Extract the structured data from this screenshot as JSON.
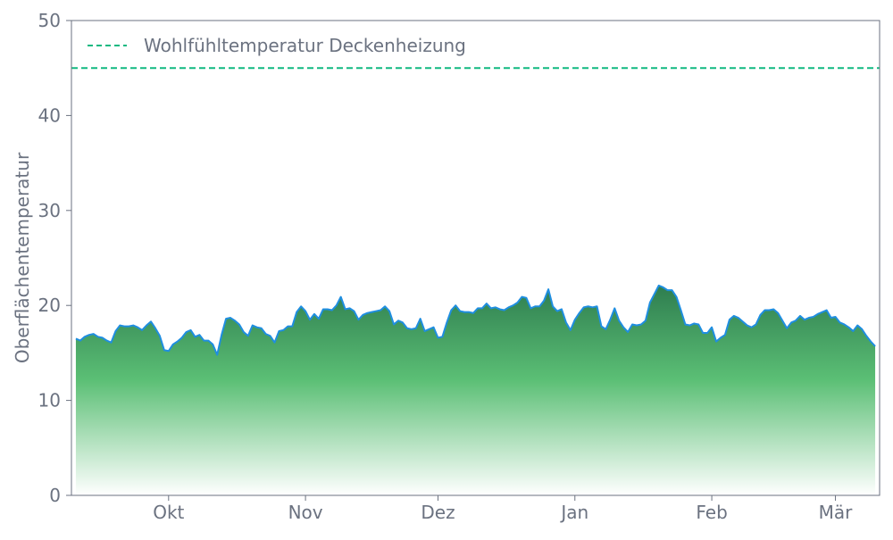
{
  "chart_data": {
    "type": "area",
    "title": "",
    "xlabel": "",
    "ylabel": "Oberflächentemperatur",
    "ylim": [
      0,
      50
    ],
    "yticks": [
      0,
      10,
      20,
      30,
      40,
      50
    ],
    "x_ticks": [
      {
        "day": 22,
        "label": "Okt"
      },
      {
        "day": 53,
        "label": "Nov"
      },
      {
        "day": 83,
        "label": "Dez"
      },
      {
        "day": 114,
        "label": "Jan"
      },
      {
        "day": 145,
        "label": "Feb"
      },
      {
        "day": 173,
        "label": "Mär"
      }
    ],
    "xlim": [
      0,
      183
    ],
    "grid": false,
    "legend_position": "top-left",
    "reference_line": {
      "name": "Wohlfühltemperatur Deckenheizung",
      "value": 45,
      "color": "#10b981"
    },
    "series": [
      {
        "line_color": "#1f8ee0",
        "fill_top_color": "#2e7d4f",
        "fill_mid_color": "#5bbf75",
        "fill_bottom_color": "#ffffff",
        "values": [
          16.5,
          16.3,
          16.7,
          16.9,
          17.0,
          16.7,
          16.6,
          16.3,
          16.1,
          17.3,
          17.9,
          17.8,
          17.8,
          17.9,
          17.7,
          17.4,
          17.9,
          18.3,
          17.6,
          16.8,
          15.3,
          15.2,
          15.9,
          16.2,
          16.6,
          17.2,
          17.4,
          16.7,
          16.9,
          16.3,
          16.3,
          15.9,
          14.8,
          16.9,
          18.6,
          18.7,
          18.4,
          18.0,
          17.2,
          16.8,
          17.9,
          17.7,
          17.6,
          17.0,
          16.8,
          16.1,
          17.3,
          17.4,
          17.8,
          17.8,
          19.3,
          19.9,
          19.4,
          18.5,
          19.1,
          18.6,
          19.6,
          19.6,
          19.5,
          20.0,
          20.9,
          19.6,
          19.7,
          19.4,
          18.5,
          19.0,
          19.2,
          19.3,
          19.4,
          19.5,
          19.9,
          19.4,
          18.0,
          18.4,
          18.2,
          17.6,
          17.5,
          17.6,
          18.6,
          17.3,
          17.5,
          17.7,
          16.6,
          16.7,
          18.2,
          19.5,
          20.0,
          19.4,
          19.3,
          19.3,
          19.2,
          19.7,
          19.7,
          20.2,
          19.7,
          19.8,
          19.6,
          19.5,
          19.8,
          20.0,
          20.3,
          20.9,
          20.8,
          19.7,
          19.9,
          19.9,
          20.5,
          21.7,
          19.9,
          19.4,
          19.6,
          18.2,
          17.4,
          18.5,
          19.2,
          19.8,
          19.9,
          19.8,
          19.9,
          17.8,
          17.5,
          18.5,
          19.7,
          18.4,
          17.7,
          17.2,
          18.0,
          17.9,
          18.0,
          18.4,
          20.3,
          21.2,
          22.1,
          21.9,
          21.6,
          21.6,
          20.9,
          19.5,
          18.0,
          17.9,
          18.1,
          18.0,
          17.1,
          17.1,
          17.7,
          16.2,
          16.6,
          16.9,
          18.5,
          18.9,
          18.7,
          18.3,
          17.9,
          17.7,
          18.0,
          19.0,
          19.5,
          19.5,
          19.6,
          19.2,
          18.4,
          17.6,
          18.2,
          18.4,
          18.9,
          18.5,
          18.7,
          18.8,
          19.1,
          19.3,
          19.5,
          18.7,
          18.8,
          18.2,
          18.0,
          17.7,
          17.3,
          17.9,
          17.5,
          16.8,
          16.2,
          15.7
        ]
      }
    ]
  }
}
